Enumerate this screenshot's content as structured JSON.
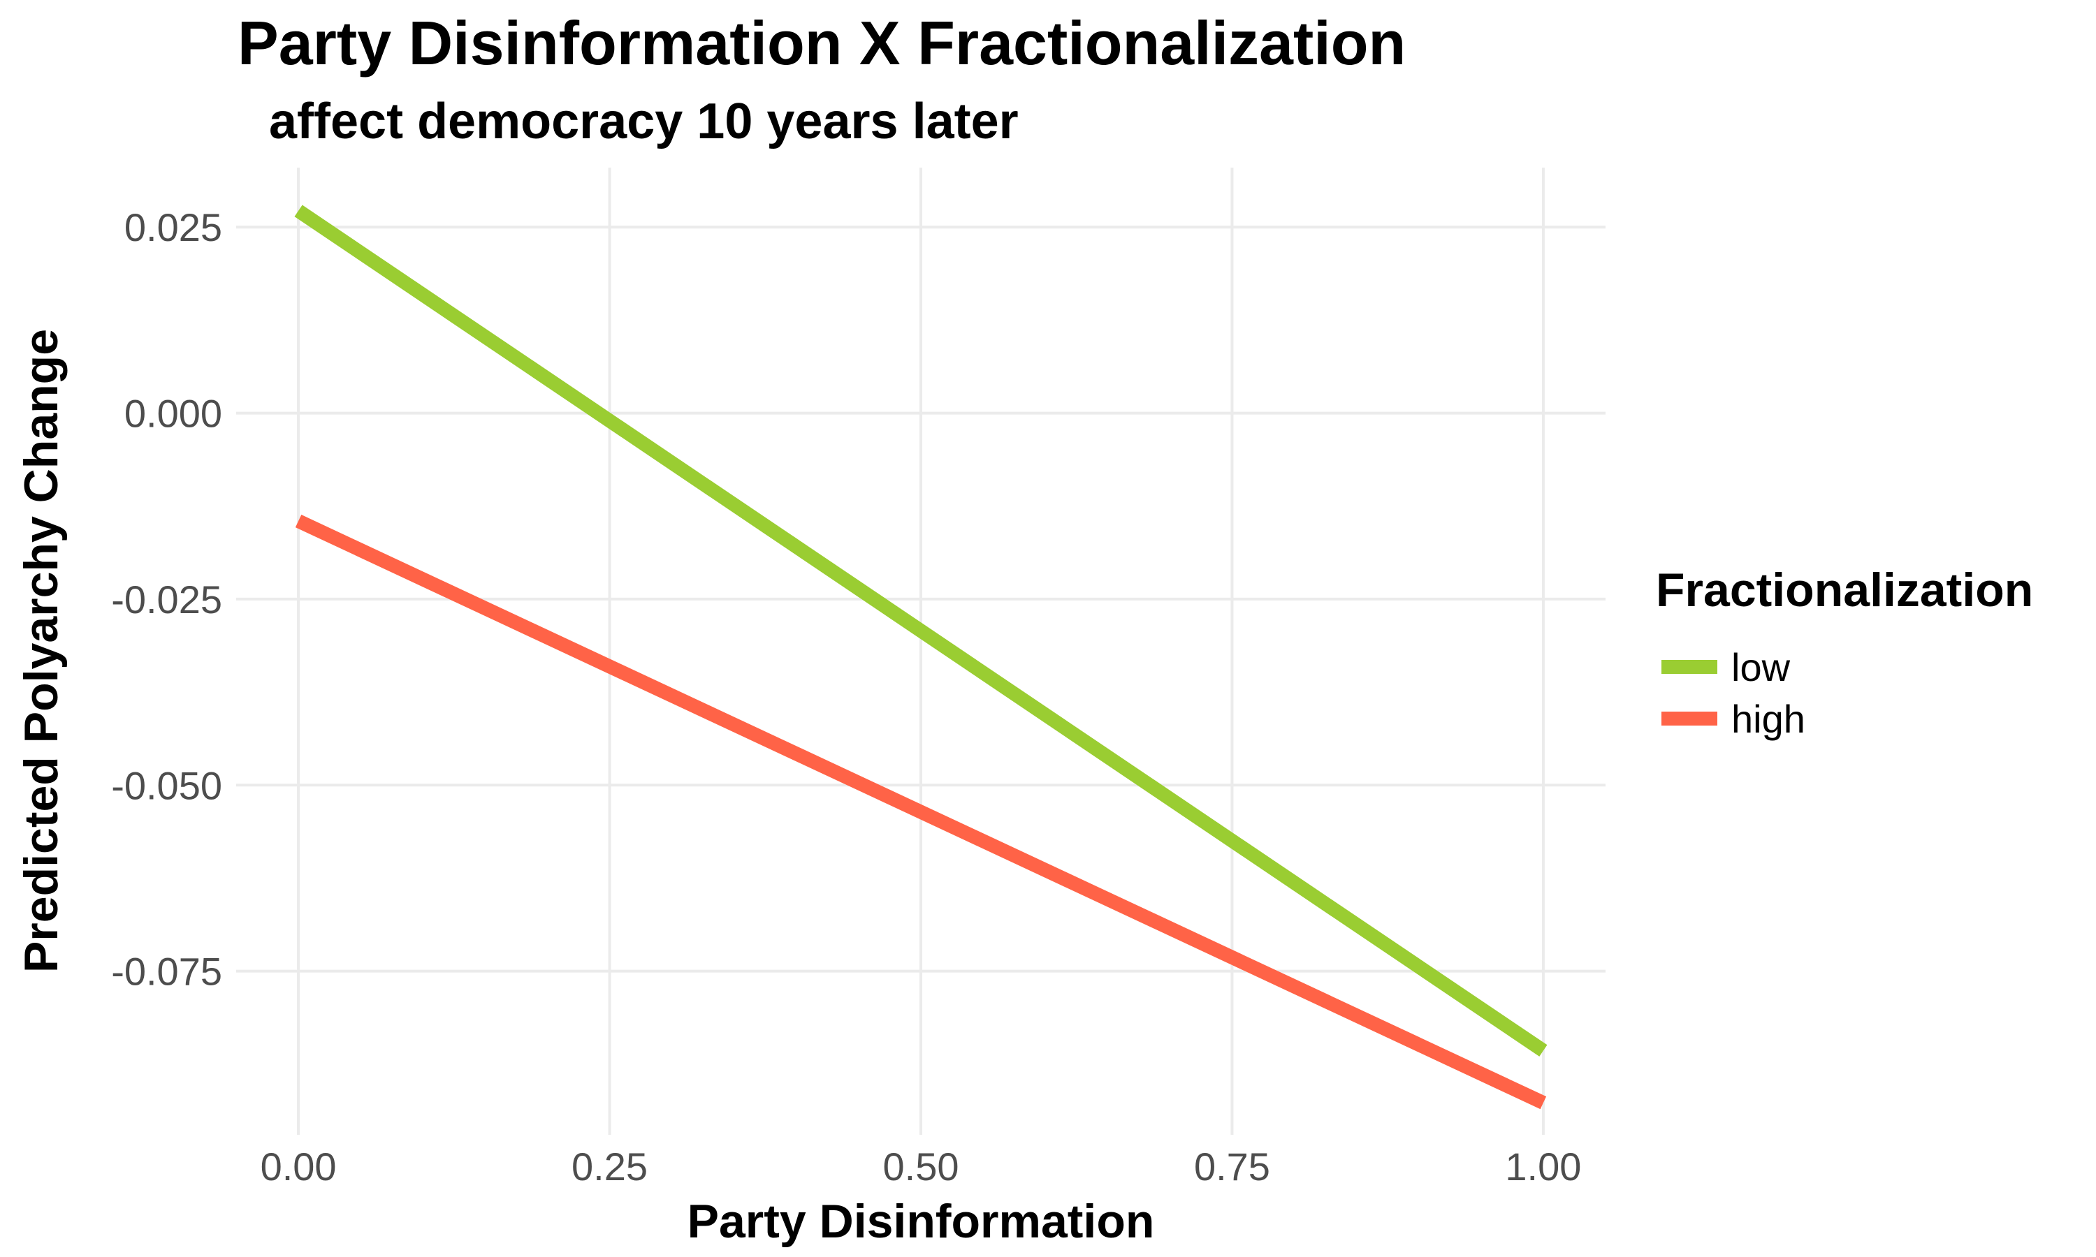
{
  "chart_data": {
    "type": "line",
    "title": "Party Disinformation X Fractionalization",
    "subtitle": "affect democracy 10 years later",
    "xlabel": "Party Disinformation",
    "ylabel": "Predicted Polyarchy Change",
    "xlim": [
      -0.05,
      1.05
    ],
    "ylim": [
      -0.097,
      0.033
    ],
    "x_ticks": [
      0.0,
      0.25,
      0.5,
      0.75,
      1.0
    ],
    "x_tick_labels": [
      "0.00",
      "0.25",
      "0.50",
      "0.75",
      "1.00"
    ],
    "y_ticks": [
      0.025,
      0.0,
      -0.025,
      -0.05,
      -0.075
    ],
    "y_tick_labels": [
      "0.025",
      "0.000",
      "-0.025",
      "-0.050",
      "-0.075"
    ],
    "grid": true,
    "legend": {
      "title": "Fractionalization",
      "placement": "right"
    },
    "series": [
      {
        "name": "low",
        "color": "#9acd32",
        "x": [
          0.0,
          1.0
        ],
        "y": [
          0.0272,
          -0.0857
        ]
      },
      {
        "name": "high",
        "color": "#ff6347",
        "x": [
          0.0,
          1.0
        ],
        "y": [
          -0.0145,
          -0.0927
        ]
      }
    ]
  }
}
